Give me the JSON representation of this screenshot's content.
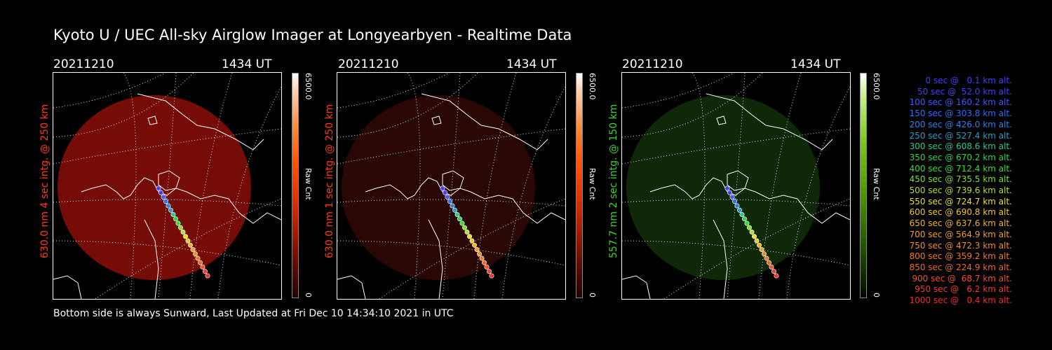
{
  "header": {
    "title": "Kyoto U / UEC All-sky Airglow Imager at Longyearbyen - Realtime Data"
  },
  "panels": [
    {
      "date": "20211210",
      "time": "1434 UT",
      "side_label": "630.0 nm 4 sec intg. @ 250 km",
      "label_color": "#ff3a1a",
      "colorbar": {
        "max_label": "6500.0",
        "min_label": "0",
        "unit_label": "Raw Cnt",
        "style": "red"
      },
      "sky_color": "#8a0e08",
      "sky_opacity": 0.85
    },
    {
      "date": "20211210",
      "time": "1434 UT",
      "side_label": "630.0 nm 1 sec intg. @ 250 km",
      "label_color": "#ff3a1a",
      "colorbar": {
        "max_label": "6500.0",
        "min_label": "0",
        "unit_label": "Raw Cnt",
        "style": "red"
      },
      "sky_color": "#2b0704",
      "sky_opacity": 0.95
    },
    {
      "date": "20211210",
      "time": "1434 UT",
      "side_label": "557.7 nm 2 sec intg. @ 150 km",
      "label_color": "#3cd42c",
      "colorbar": {
        "max_label": "6500.0",
        "min_label": "0",
        "unit_label": "Raw Cnt",
        "style": "green"
      },
      "sky_color": "#0f2a08",
      "sky_opacity": 0.95
    }
  ],
  "trajectory_legend": [
    {
      "text": "0 sec @   0.1 km alt.",
      "color": "#4a3cff"
    },
    {
      "text": "50 sec @  52.0 km alt.",
      "color": "#4a3cff"
    },
    {
      "text": "100 sec @ 160.2 km alt.",
      "color": "#3c5aff"
    },
    {
      "text": "150 sec @ 303.8 km alt.",
      "color": "#2e6eff"
    },
    {
      "text": "200 sec @ 426.0 km alt.",
      "color": "#2a82e8"
    },
    {
      "text": "250 sec @ 527.4 km alt.",
      "color": "#2a9cc8"
    },
    {
      "text": "300 sec @ 608.6 km alt.",
      "color": "#2ac88c"
    },
    {
      "text": "350 sec @ 670.2 km alt.",
      "color": "#2ad84a"
    },
    {
      "text": "400 sec @ 712.4 km alt.",
      "color": "#36e02a"
    },
    {
      "text": "450 sec @ 735.5 km alt.",
      "color": "#7ee02a"
    },
    {
      "text": "500 sec @ 739.6 km alt.",
      "color": "#b8e02a"
    },
    {
      "text": "550 sec @ 724.7 km alt.",
      "color": "#e8e02a"
    },
    {
      "text": "600 sec @ 690.8 km alt.",
      "color": "#f0c82a"
    },
    {
      "text": "650 sec @ 637.6 km alt.",
      "color": "#f0b22a"
    },
    {
      "text": "700 sec @ 564.9 km alt.",
      "color": "#f0a02a"
    },
    {
      "text": "750 sec @ 472.3 km alt.",
      "color": "#f08c2a"
    },
    {
      "text": "800 sec @ 359.2 km alt.",
      "color": "#f07a2a"
    },
    {
      "text": "850 sec @ 224.9 km alt.",
      "color": "#f0682a"
    },
    {
      "text": "900 sec @  68.7 km alt.",
      "color": "#f0502a"
    },
    {
      "text": "950 sec @   6.2 km alt.",
      "color": "#f03c2a"
    },
    {
      "text": "1000 sec @   0.4 km alt.",
      "color": "#f02a2a"
    }
  ],
  "footer": {
    "text": "Bottom side is always Sunward, Last Updated at Fri Dec 10 14:34:10 2021 in UTC"
  }
}
